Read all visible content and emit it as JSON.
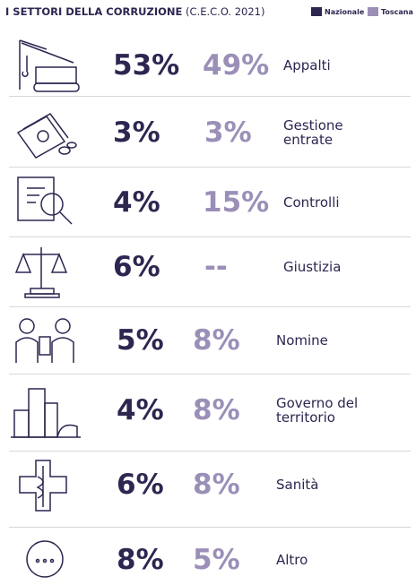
{
  "header": {
    "title": "I SETTORI DELLA CORRUZIONE",
    "subtitle": "(C.E.C.O. 2021)"
  },
  "legend": [
    "Nazionale",
    "Toscana"
  ],
  "rows": [
    {
      "label": [
        "Appalti"
      ],
      "nazionale": "53%",
      "toscana": "49%"
    },
    {
      "label": [
        "Gestione",
        "entrate"
      ],
      "nazionale": "3%",
      "toscana": "3%"
    },
    {
      "label": [
        "Controlli"
      ],
      "nazionale": "4%",
      "toscana": "15%"
    },
    {
      "label": [
        "Giustizia"
      ],
      "nazionale": "6%",
      "toscana": "--"
    },
    {
      "label": [
        "Nomine"
      ],
      "nazionale": "5%",
      "toscana": "8%"
    },
    {
      "label": [
        "Governo del",
        "territorio"
      ],
      "nazionale": "4%",
      "toscana": "8%"
    },
    {
      "label": [
        "Sanità"
      ],
      "nazionale": "6%",
      "toscana": "8%"
    },
    {
      "label": [
        "Altro"
      ],
      "nazionale": "8%",
      "toscana": "5%"
    }
  ]
}
